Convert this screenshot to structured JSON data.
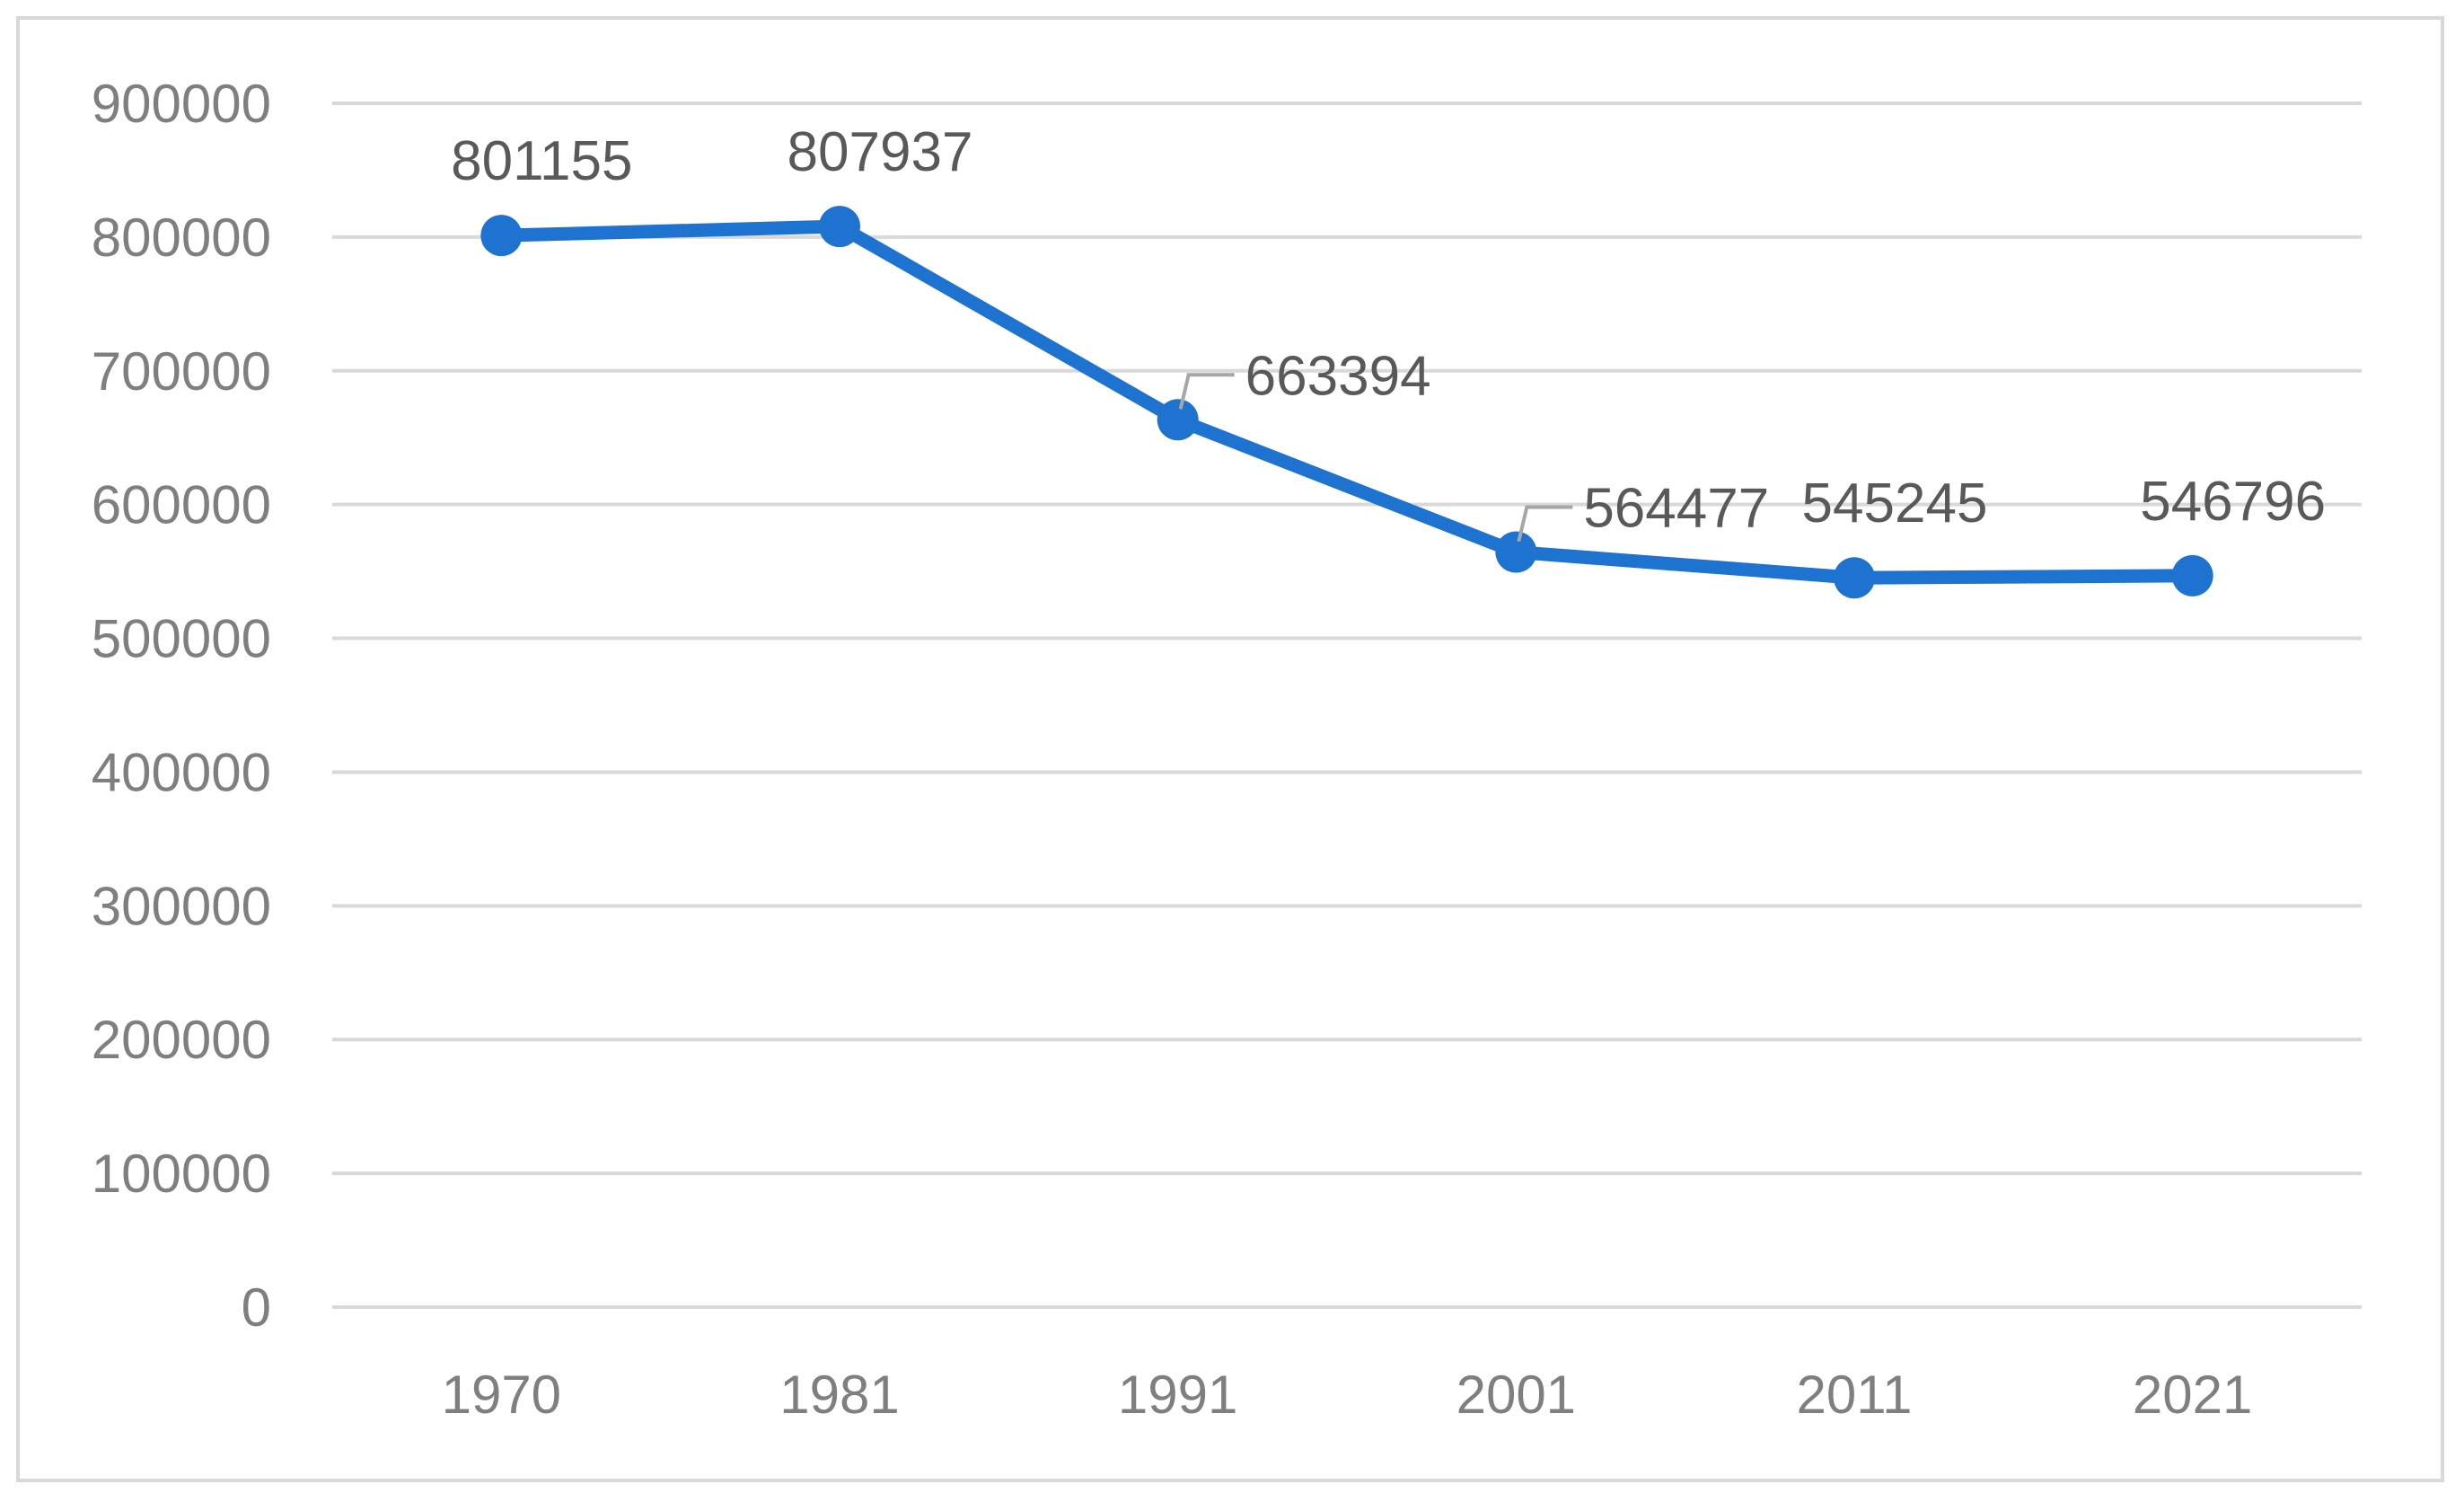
{
  "chart_data": {
    "type": "line",
    "categories": [
      "1970",
      "1981",
      "1991",
      "2001",
      "2011",
      "2021"
    ],
    "series": [
      {
        "values": [
          801155,
          807937,
          663394,
          564477,
          545245,
          546796
        ],
        "color": "#1f73d0"
      }
    ],
    "data_labels": [
      "801155",
      "807937",
      "663394",
      "564477",
      "545245",
      "546796"
    ],
    "ylim": [
      0,
      900000
    ],
    "yticks": [
      0,
      100000,
      200000,
      300000,
      400000,
      500000,
      600000,
      700000,
      800000,
      900000
    ],
    "ytick_labels": [
      "0",
      "100000",
      "200000",
      "300000",
      "400000",
      "500000",
      "600000",
      "700000",
      "800000",
      "900000"
    ],
    "grid": true,
    "legend": "none",
    "title": "",
    "xlabel": "",
    "ylabel": "",
    "colors": {
      "line": "#1f73d0",
      "grid": "#d9d9d9",
      "tick_text": "#7f7f7f",
      "label_text": "#595959",
      "leader": "#a6a6a6",
      "border": "#d9d9d9"
    }
  }
}
